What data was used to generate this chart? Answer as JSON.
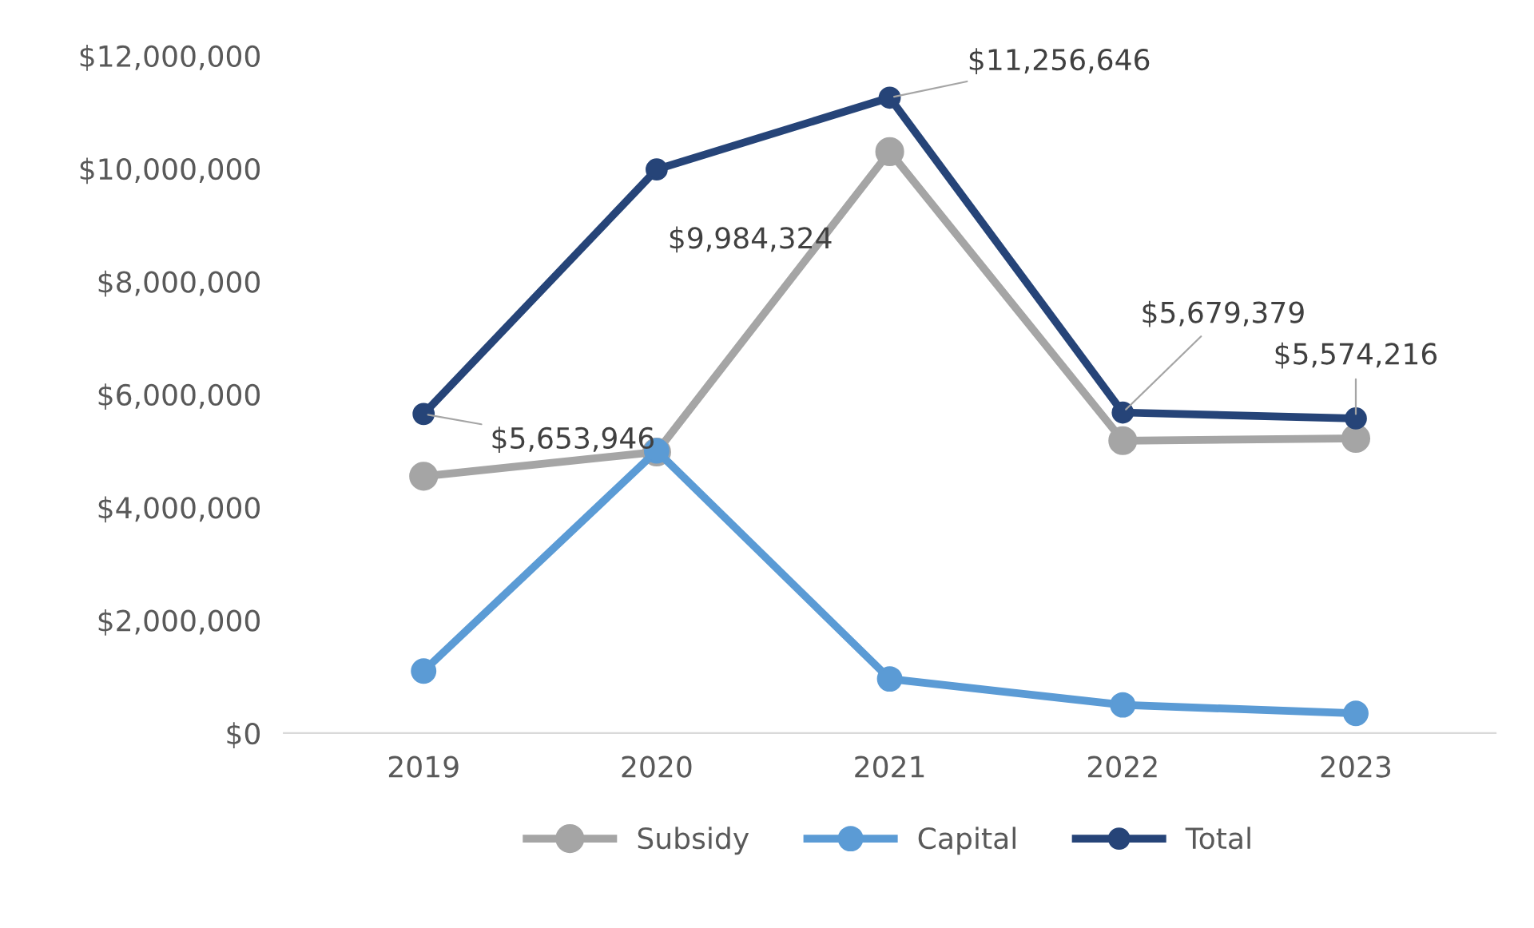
{
  "chart_data": {
    "type": "line",
    "categories": [
      "2019",
      "2020",
      "2021",
      "2022",
      "2023"
    ],
    "series": [
      {
        "name": "Subsidy",
        "color": "#a5a5a5",
        "values": [
          4550000,
          4980000,
          10300000,
          5180000,
          5220000
        ]
      },
      {
        "name": "Capital",
        "color": "#5b9bd5",
        "values": [
          1100000,
          5000000,
          960000,
          500000,
          350000
        ]
      },
      {
        "name": "Total",
        "color": "#264478",
        "values": [
          5653946,
          9984324,
          11256646,
          5679379,
          5574216
        ],
        "value_labels": [
          "$5,653,946",
          "$9,984,324",
          "$11,256,646",
          "$5,679,379",
          "$5,574,216"
        ]
      }
    ],
    "ylim": [
      0,
      12000000
    ],
    "yticks": [
      {
        "value": 0,
        "label": "$0"
      },
      {
        "value": 2000000,
        "label": "$2,000,000"
      },
      {
        "value": 4000000,
        "label": "$4,000,000"
      },
      {
        "value": 6000000,
        "label": "$6,000,000"
      },
      {
        "value": 8000000,
        "label": "$8,000,000"
      },
      {
        "value": 10000000,
        "label": "$10,000,000"
      },
      {
        "value": 12000000,
        "label": "$12,000,000"
      }
    ],
    "grid": false,
    "legend": "bottom",
    "marker": "circle",
    "line_style": "solid"
  }
}
